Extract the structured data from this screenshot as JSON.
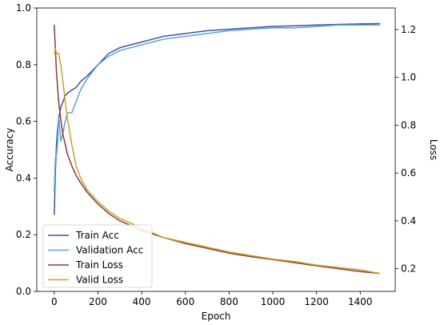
{
  "chart_data": {
    "type": "line",
    "xlabel": "Epoch",
    "ylabel": "Accuracy",
    "y2label": "Loss",
    "xlim": [
      -80,
      1560
    ],
    "ylim": [
      0.0,
      1.0
    ],
    "y2lim": [
      0.105,
      1.29
    ],
    "x_ticks": [
      0,
      200,
      400,
      600,
      800,
      1000,
      1200,
      1400
    ],
    "y_ticks": [
      0.0,
      0.2,
      0.4,
      0.6,
      0.8,
      1.0
    ],
    "y2_ticks": [
      0.2,
      0.4,
      0.6,
      0.8,
      1.0,
      1.2
    ],
    "legend_position": "lower-left",
    "series": [
      {
        "name": "Train Acc",
        "axis": "left",
        "color": "#3f51a8",
        "x": [
          0,
          5,
          10,
          15,
          20,
          30,
          40,
          50,
          60,
          80,
          100,
          120,
          150,
          200,
          250,
          300,
          350,
          400,
          450,
          500,
          600,
          700,
          800,
          900,
          1000,
          1100,
          1200,
          1300,
          1400,
          1490
        ],
        "y": [
          0.27,
          0.42,
          0.52,
          0.57,
          0.61,
          0.65,
          0.67,
          0.69,
          0.7,
          0.71,
          0.72,
          0.74,
          0.76,
          0.8,
          0.84,
          0.86,
          0.87,
          0.88,
          0.89,
          0.9,
          0.91,
          0.92,
          0.925,
          0.93,
          0.935,
          0.937,
          0.94,
          0.942,
          0.944,
          0.945
        ]
      },
      {
        "name": "Validation Acc",
        "axis": "left",
        "color": "#5aa2d8",
        "x": [
          0,
          5,
          10,
          15,
          20,
          30,
          40,
          50,
          60,
          80,
          100,
          120,
          150,
          200,
          250,
          300,
          350,
          400,
          450,
          500,
          600,
          700,
          800,
          900,
          1000,
          1100,
          1200,
          1300,
          1400,
          1490
        ],
        "y": [
          0.35,
          0.47,
          0.48,
          0.52,
          0.62,
          0.53,
          0.56,
          0.6,
          0.63,
          0.63,
          0.67,
          0.71,
          0.75,
          0.8,
          0.83,
          0.85,
          0.86,
          0.87,
          0.88,
          0.89,
          0.9,
          0.91,
          0.92,
          0.925,
          0.93,
          0.93,
          0.935,
          0.94,
          0.94,
          0.94
        ]
      },
      {
        "name": "Train Loss",
        "axis": "right",
        "color": "#8b3a3a",
        "x": [
          0,
          5,
          10,
          20,
          30,
          40,
          50,
          60,
          80,
          100,
          120,
          150,
          200,
          250,
          300,
          350,
          400,
          450,
          500,
          600,
          700,
          800,
          900,
          1000,
          1100,
          1200,
          1300,
          1400,
          1490
        ],
        "y": [
          1.22,
          1.12,
          1.02,
          0.9,
          0.82,
          0.76,
          0.72,
          0.68,
          0.63,
          0.59,
          0.56,
          0.52,
          0.47,
          0.43,
          0.4,
          0.38,
          0.36,
          0.345,
          0.33,
          0.305,
          0.285,
          0.265,
          0.25,
          0.238,
          0.225,
          0.212,
          0.2,
          0.188,
          0.18
        ]
      },
      {
        "name": "Valid Loss",
        "axis": "right",
        "color": "#c9a227",
        "x": [
          0,
          5,
          10,
          20,
          30,
          40,
          50,
          60,
          80,
          100,
          120,
          150,
          200,
          250,
          300,
          350,
          400,
          450,
          500,
          600,
          700,
          800,
          900,
          1000,
          1100,
          1200,
          1300,
          1400,
          1490
        ],
        "y": [
          1.1,
          1.12,
          1.1,
          1.1,
          1.05,
          0.98,
          0.9,
          0.83,
          0.72,
          0.63,
          0.58,
          0.53,
          0.48,
          0.44,
          0.41,
          0.39,
          0.37,
          0.35,
          0.33,
          0.31,
          0.29,
          0.27,
          0.255,
          0.24,
          0.23,
          0.215,
          0.205,
          0.195,
          0.18
        ]
      }
    ]
  }
}
